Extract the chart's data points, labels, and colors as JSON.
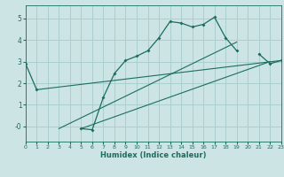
{
  "background_color": "#cde4e4",
  "grid_color": "#aacece",
  "line_color": "#1a6e5e",
  "xlabel": "Humidex (Indice chaleur)",
  "xlim": [
    0,
    23
  ],
  "ylim": [
    -0.7,
    5.6
  ],
  "yticks": [
    0,
    1,
    2,
    3,
    4,
    5
  ],
  "xticks": [
    0,
    1,
    2,
    3,
    4,
    5,
    6,
    7,
    8,
    9,
    10,
    11,
    12,
    13,
    14,
    15,
    16,
    17,
    18,
    19,
    20,
    21,
    22,
    23
  ],
  "series1_x": [
    0,
    1,
    2,
    3,
    4,
    5,
    6,
    7,
    8,
    9,
    10,
    11,
    12,
    13,
    14,
    15,
    16,
    17,
    18,
    19,
    20,
    21,
    22,
    23
  ],
  "series1_y": [
    2.9,
    1.7,
    null,
    null,
    null,
    -0.1,
    -0.15,
    1.35,
    2.45,
    3.05,
    3.25,
    3.5,
    4.1,
    4.85,
    4.78,
    4.6,
    4.72,
    5.05,
    4.1,
    3.5,
    null,
    3.35,
    2.9,
    3.05
  ],
  "line1_x": [
    1,
    23
  ],
  "line1_y": [
    1.7,
    3.05
  ],
  "line2_x": [
    3,
    19
  ],
  "line2_y": [
    -0.1,
    3.9
  ],
  "line3_x": [
    5,
    22
  ],
  "line3_y": [
    -0.1,
    3.0
  ]
}
